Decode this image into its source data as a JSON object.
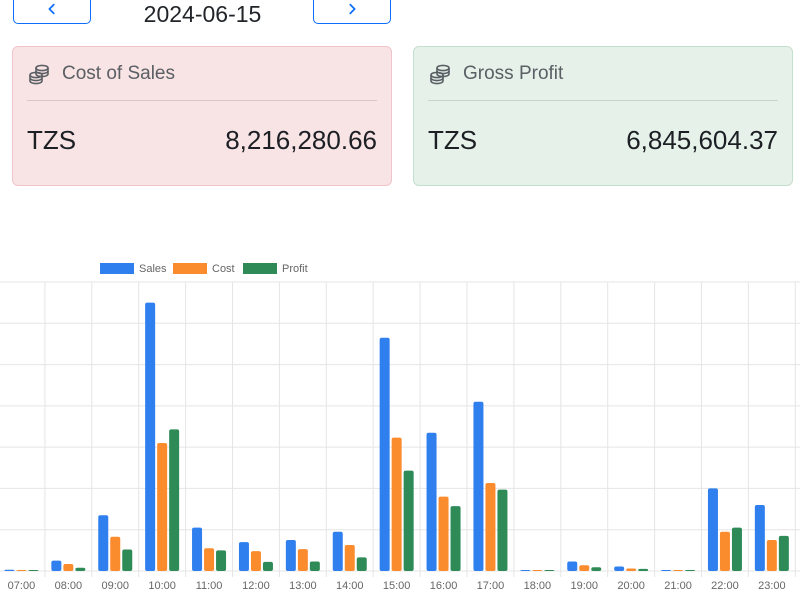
{
  "date_nav": {
    "date": "2024-06-15"
  },
  "cards": {
    "cost": {
      "title": "Cost of Sales",
      "currency": "TZS",
      "amount": "8,216,280.66",
      "icon": "coins-icon"
    },
    "profit": {
      "title": "Gross Profit",
      "currency": "TZS",
      "amount": "6,845,604.37",
      "icon": "coins-icon"
    }
  },
  "chart_data": {
    "type": "bar",
    "categories": [
      "07:00",
      "08:00",
      "09:00",
      "10:00",
      "11:00",
      "12:00",
      "13:00",
      "14:00",
      "15:00",
      "16:00",
      "17:00",
      "18:00",
      "19:00",
      "20:00",
      "21:00",
      "22:00",
      "23:00"
    ],
    "series": [
      {
        "name": "Sales",
        "color": "#2f7fef",
        "values": [
          0.3,
          2.5,
          13.5,
          65,
          10.5,
          7,
          7.5,
          9.5,
          56.5,
          33.5,
          41,
          0.2,
          2.3,
          1.1,
          0.2,
          20,
          16
        ]
      },
      {
        "name": "Cost",
        "color": "#fb8c2e",
        "values": [
          0.2,
          1.7,
          8.3,
          31,
          5.5,
          4.8,
          5.3,
          6.3,
          32.3,
          18,
          21.3,
          0.1,
          1.4,
          0.6,
          0.1,
          9.5,
          7.5
        ]
      },
      {
        "name": "Profit",
        "color": "#2e8b57",
        "values": [
          0.1,
          0.8,
          5.2,
          34.3,
          5,
          2.2,
          2.3,
          3.3,
          24.3,
          15.7,
          19.7,
          0.1,
          0.9,
          0.5,
          0.1,
          10.5,
          8.5
        ]
      }
    ],
    "ylim": [
      0,
      70
    ],
    "grid": true,
    "legend": "top-left"
  }
}
